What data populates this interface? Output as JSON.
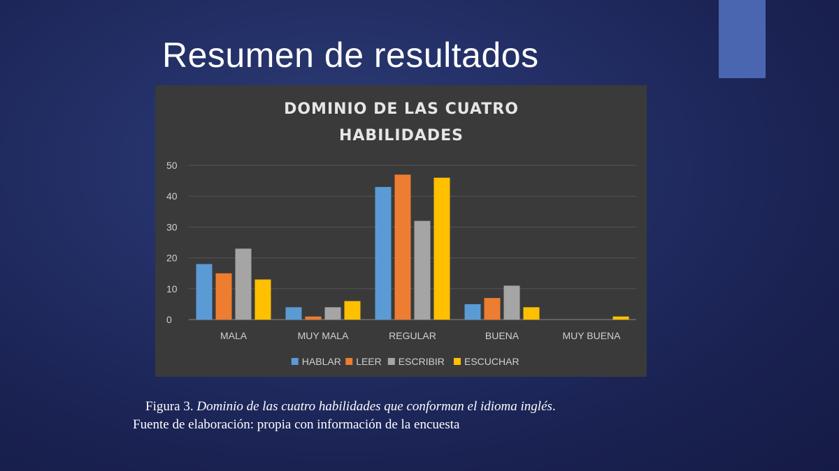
{
  "slide": {
    "title": "Resumen de resultados",
    "accent_color": "#4a66b0"
  },
  "caption": {
    "figure_label": "Figura 3.",
    "figure_text": "Dominio de las cuatro habilidades que conforman el idioma inglés",
    "figure_end": ".",
    "source_text": "Fuente de elaboración: propia con información de la encuesta"
  },
  "chart_data": {
    "type": "bar",
    "title_lines": [
      "DOMINIO DE LAS CUATRO",
      "HABILIDADES"
    ],
    "categories": [
      "MALA",
      "MUY MALA",
      "REGULAR",
      "BUENA",
      "MUY BUENA"
    ],
    "series": [
      {
        "name": "HABLAR",
        "color": "#5b9bd5",
        "values": [
          18,
          4,
          43,
          5,
          0
        ]
      },
      {
        "name": "LEER",
        "color": "#ed7d31",
        "values": [
          15,
          1,
          47,
          7,
          0
        ]
      },
      {
        "name": "ESCRIBIR",
        "color": "#a5a5a5",
        "values": [
          23,
          4,
          32,
          11,
          0
        ]
      },
      {
        "name": "ESCUCHAR",
        "color": "#ffc000",
        "values": [
          13,
          6,
          46,
          4,
          1
        ]
      }
    ],
    "ylim": [
      0,
      50
    ],
    "yticks": [
      "0",
      "10",
      "20",
      "30",
      "40",
      "50"
    ],
    "grid": true,
    "legend_position": "bottom"
  }
}
